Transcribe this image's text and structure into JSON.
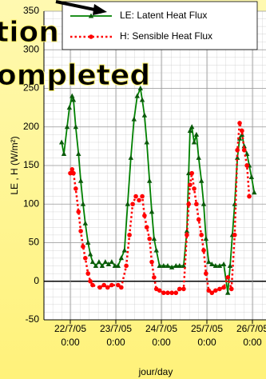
{
  "chart_data": {
    "type": "line",
    "annotations": [
      "tion",
      "ompleted"
    ],
    "y_label": "LE , H  (W/m²)",
    "x_label": "jour/day",
    "ylim": [
      -50,
      350
    ],
    "yticks": [
      -50,
      0,
      50,
      100,
      150,
      200,
      250,
      300,
      350
    ],
    "xlim": [
      -0.58,
      4.5
    ],
    "xticks": [
      {
        "value": 0,
        "label": [
          "22/7/05",
          "0:00"
        ]
      },
      {
        "value": 1,
        "label": [
          "23/7/05",
          "0:00"
        ]
      },
      {
        "value": 2,
        "label": [
          "24/7/05",
          "0:00"
        ]
      },
      {
        "value": 3,
        "label": [
          "25/7/05",
          "0:00"
        ]
      },
      {
        "value": 4,
        "label": [
          "26/7/05",
          "0:00"
        ]
      }
    ],
    "grid": true,
    "legend": "top-right",
    "series": [
      {
        "name": "LE: Latent Heat Flux",
        "color": "#008000",
        "marker": "triangle",
        "dash": "solid",
        "x": [
          -0.19,
          -0.14,
          -0.07,
          -0.02,
          0.04,
          0.07,
          0.12,
          0.18,
          0.23,
          0.28,
          0.33,
          0.39,
          0.44,
          0.49,
          0.56,
          0.63,
          0.7,
          0.77,
          0.84,
          0.91,
          0.98,
          1.05,
          1.12,
          1.19,
          1.26,
          1.33,
          1.4,
          1.47,
          1.54,
          1.58,
          1.63,
          1.68,
          1.74,
          1.79,
          1.84,
          1.89,
          1.96,
          2.05,
          2.14,
          2.23,
          2.32,
          2.4,
          2.49,
          2.56,
          2.6,
          2.63,
          2.67,
          2.72,
          2.77,
          2.82,
          2.88,
          2.93,
          2.98,
          3.04,
          3.11,
          3.19,
          3.28,
          3.37,
          3.46,
          3.51,
          3.56,
          3.61,
          3.67,
          3.72,
          3.77,
          3.82,
          3.88,
          3.93,
          3.98,
          4.04
        ],
        "values": [
          180,
          165,
          200,
          225,
          240,
          235,
          200,
          165,
          130,
          100,
          75,
          50,
          35,
          25,
          20,
          25,
          20,
          25,
          22,
          25,
          20,
          20,
          30,
          40,
          100,
          160,
          210,
          240,
          250,
          235,
          215,
          180,
          130,
          90,
          55,
          40,
          20,
          20,
          20,
          18,
          20,
          20,
          20,
          65,
          140,
          195,
          200,
          180,
          190,
          160,
          130,
          100,
          55,
          25,
          22,
          20,
          20,
          22,
          -15,
          20,
          60,
          100,
          160,
          185,
          190,
          175,
          165,
          150,
          135,
          115
        ]
      },
      {
        "name": "H: Sensible Heat Flux",
        "color": "#ff0000",
        "marker": "circle",
        "dash": "dotted",
        "x": [
          0,
          0.04,
          0.07,
          0.12,
          0.18,
          0.23,
          0.28,
          0.33,
          0.39,
          0.44,
          0.49,
          0.65,
          0.74,
          0.82,
          0.91,
          1.05,
          1.12,
          1.23,
          1.3,
          1.37,
          1.44,
          1.51,
          1.58,
          1.63,
          1.68,
          1.74,
          1.79,
          1.84,
          1.89,
          1.96,
          2.05,
          2.14,
          2.23,
          2.32,
          2.4,
          2.49,
          2.56,
          2.6,
          2.63,
          2.67,
          2.72,
          2.77,
          2.82,
          2.88,
          2.93,
          2.98,
          3.04,
          3.11,
          3.19,
          3.28,
          3.37,
          3.46,
          3.54,
          3.61,
          3.67,
          3.72,
          3.77,
          3.82,
          3.88,
          3.93
        ],
        "values": [
          140,
          145,
          140,
          120,
          90,
          65,
          45,
          30,
          10,
          0,
          -5,
          -8,
          -5,
          -8,
          -5,
          -5,
          -8,
          20,
          60,
          100,
          110,
          105,
          110,
          85,
          70,
          55,
          25,
          5,
          -10,
          -12,
          -15,
          -15,
          -15,
          -15,
          -10,
          -10,
          60,
          100,
          125,
          140,
          120,
          100,
          80,
          60,
          40,
          10,
          -12,
          -15,
          -12,
          -10,
          -8,
          5,
          -10,
          60,
          170,
          205,
          195,
          170,
          150,
          110
        ]
      }
    ]
  }
}
